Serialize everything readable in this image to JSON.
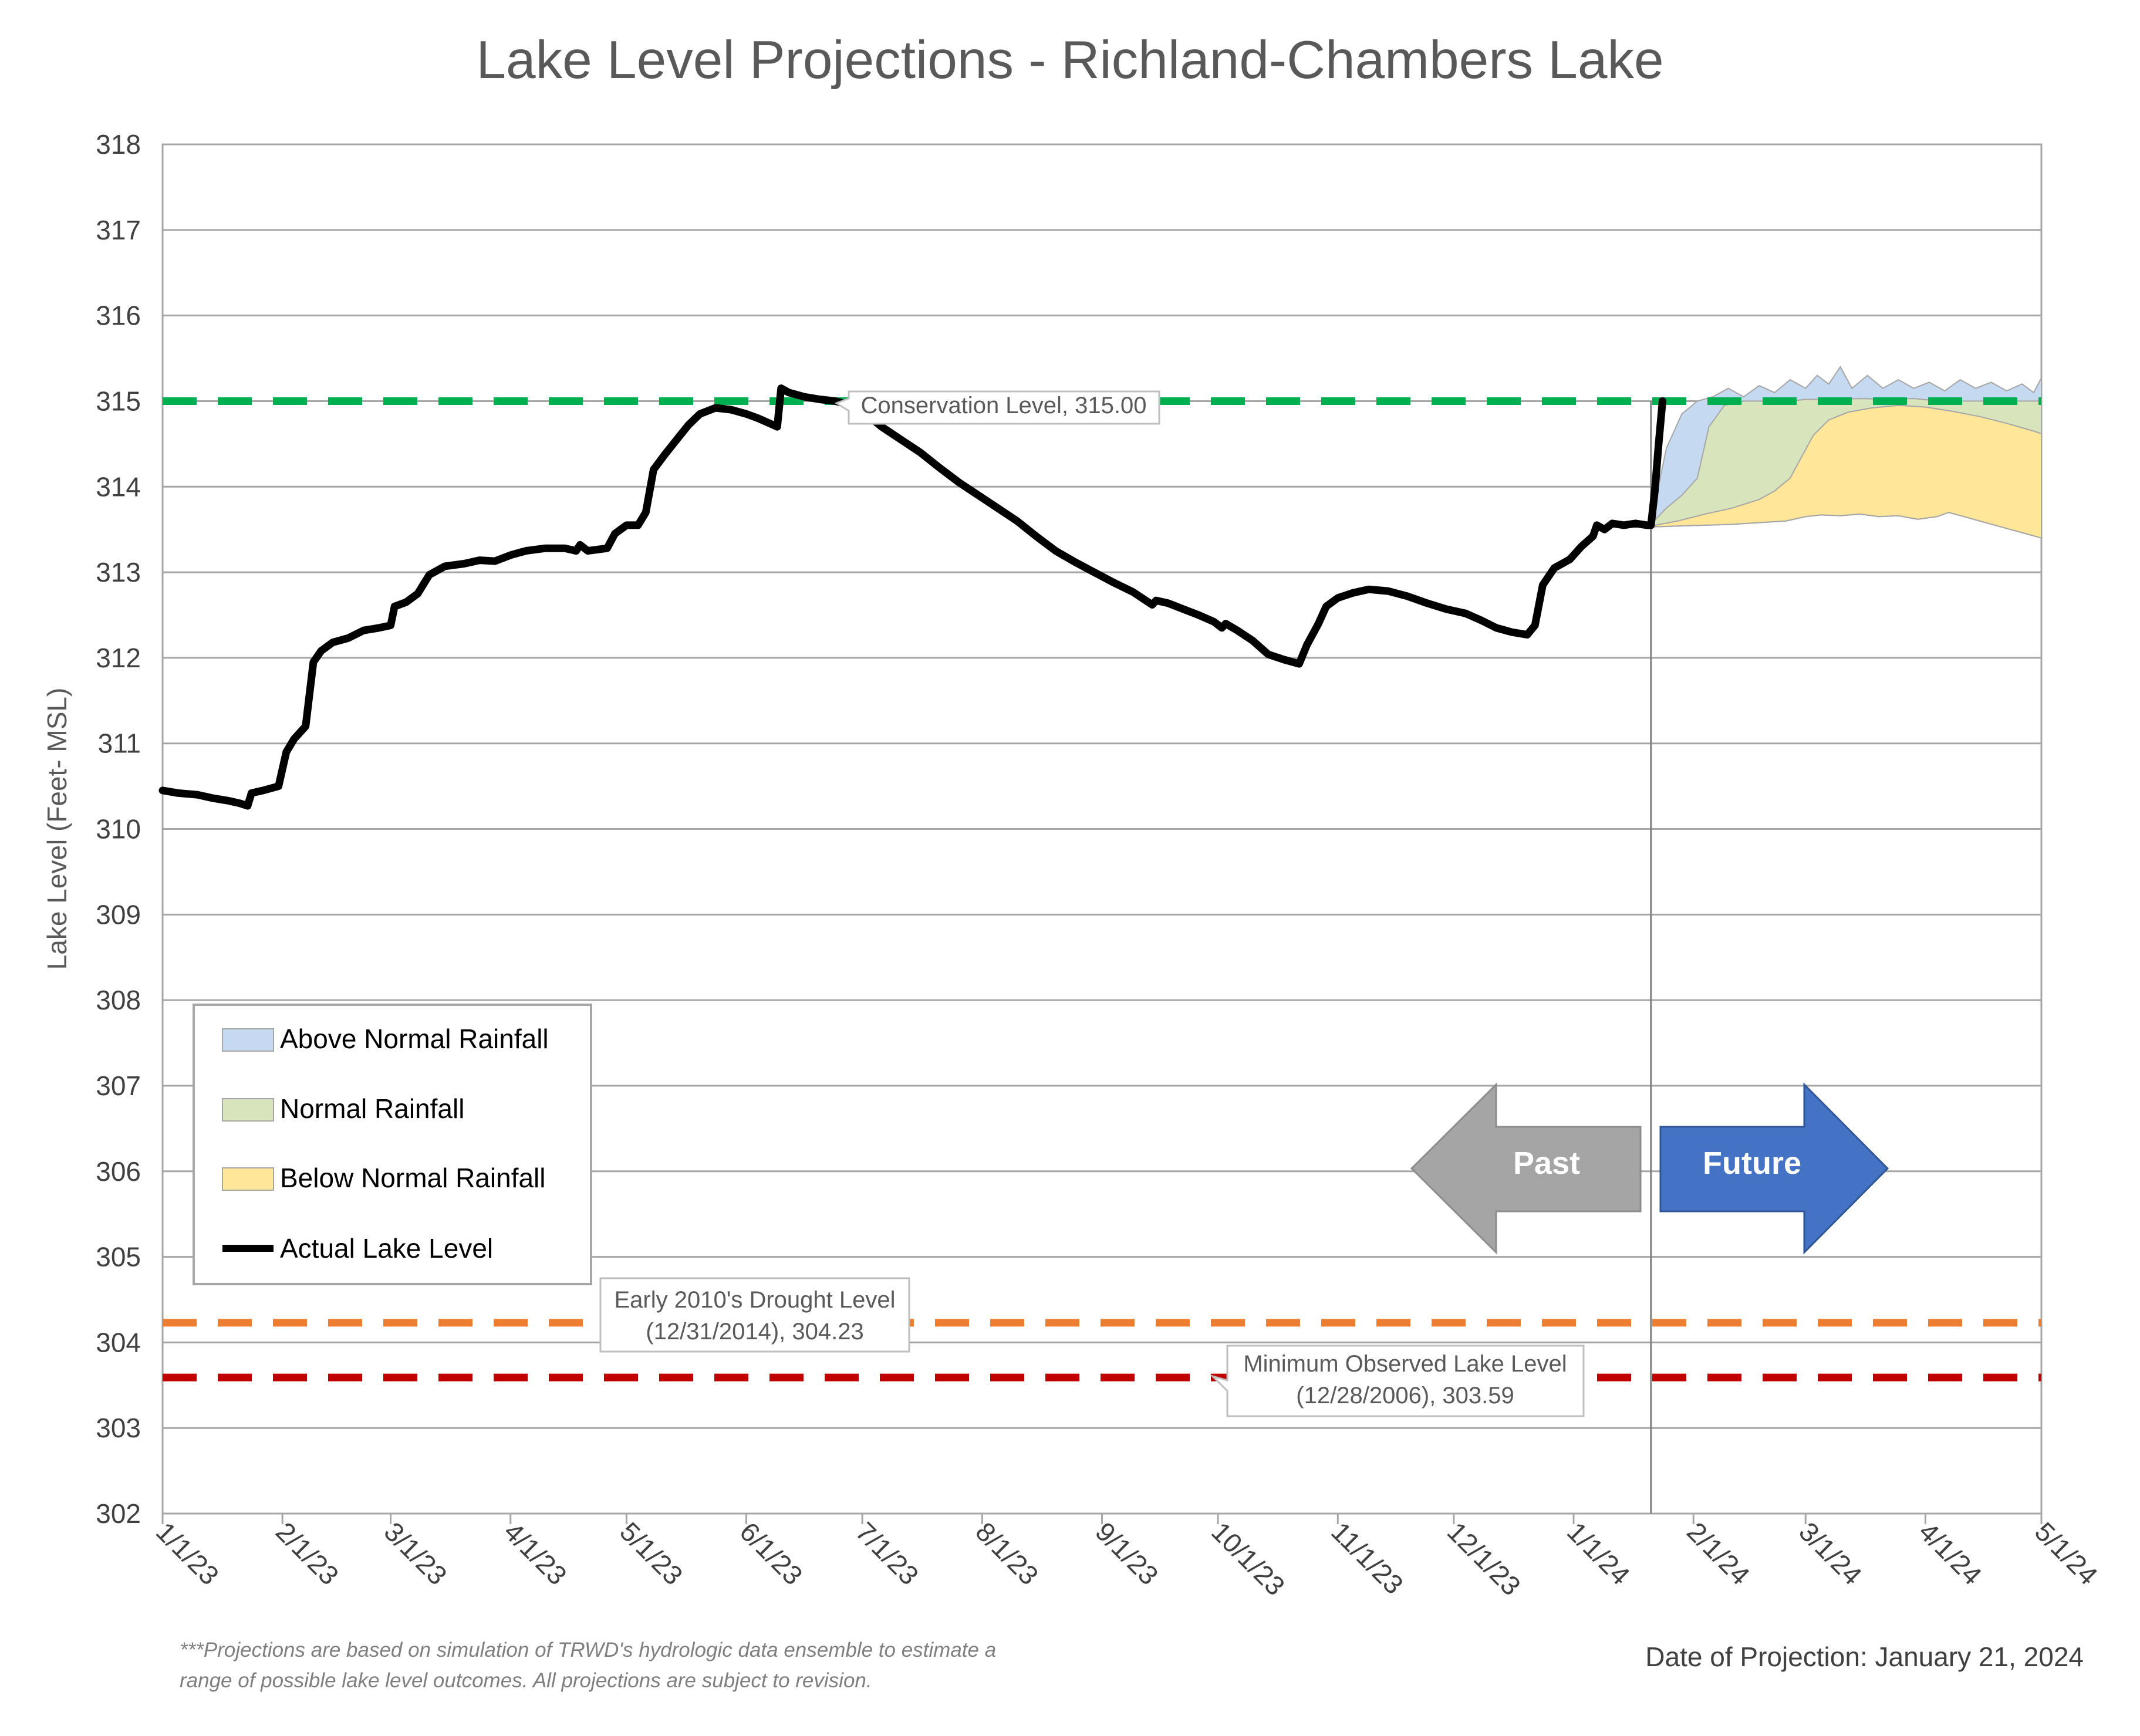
{
  "chart_data": {
    "type": "area",
    "title": "Lake Level Projections - Richland-Chambers Lake",
    "ylabel": "Lake Level (Feet- MSL)",
    "ylim": [
      302,
      318
    ],
    "yticks": [
      "302",
      "303",
      "304",
      "305",
      "306",
      "307",
      "308",
      "309",
      "310",
      "311",
      "312",
      "313",
      "314",
      "315",
      "316",
      "317",
      "318"
    ],
    "xlim": [
      "2023-01-01",
      "2024-05-01"
    ],
    "xticks": [
      {
        "date": "2023-01-01",
        "label": "1/1/23"
      },
      {
        "date": "2023-02-01",
        "label": "2/1/23"
      },
      {
        "date": "2023-03-01",
        "label": "3/1/23"
      },
      {
        "date": "2023-04-01",
        "label": "4/1/23"
      },
      {
        "date": "2023-05-01",
        "label": "5/1/23"
      },
      {
        "date": "2023-06-01",
        "label": "6/1/23"
      },
      {
        "date": "2023-07-01",
        "label": "7/1/23"
      },
      {
        "date": "2023-08-01",
        "label": "8/1/23"
      },
      {
        "date": "2023-09-01",
        "label": "9/1/23"
      },
      {
        "date": "2023-10-01",
        "label": "10/1/23"
      },
      {
        "date": "2023-11-01",
        "label": "11/1/23"
      },
      {
        "date": "2023-12-01",
        "label": "12/1/23"
      },
      {
        "date": "2024-01-01",
        "label": "1/1/24"
      },
      {
        "date": "2024-02-01",
        "label": "2/1/24"
      },
      {
        "date": "2024-03-01",
        "label": "3/1/24"
      },
      {
        "date": "2024-04-01",
        "label": "4/1/24"
      },
      {
        "date": "2024-05-01",
        "label": "5/1/24"
      }
    ],
    "grid": true,
    "legend_position": "lower-left",
    "projection_date": "2024-01-21",
    "reference_lines": [
      {
        "name": "Conservation Level",
        "value": 315.0,
        "color": "#00b050",
        "label": "Conservation Level, 315.00"
      },
      {
        "name": "Early 2010's Drought Level",
        "value": 304.23,
        "color": "#ed7d31",
        "label_line1": "Early 2010's Drought Level",
        "label_line2": "(12/31/2014), 304.23"
      },
      {
        "name": "Minimum Observed Lake Level",
        "value": 303.59,
        "color": "#c00000",
        "label_line1": "Minimum Observed Lake Level",
        "label_line2": "(12/28/2006), 303.59"
      }
    ],
    "series": [
      {
        "name": "Actual Lake Level",
        "color": "#000000",
        "points": [
          [
            "2023-01-01",
            310.45
          ],
          [
            "2023-01-05",
            310.42
          ],
          [
            "2023-01-10",
            310.4
          ],
          [
            "2023-01-14",
            310.36
          ],
          [
            "2023-01-18",
            310.33
          ],
          [
            "2023-01-21",
            310.3
          ],
          [
            "2023-01-23",
            310.27
          ],
          [
            "2023-01-24",
            310.42
          ],
          [
            "2023-01-27",
            310.45
          ],
          [
            "2023-01-31",
            310.5
          ],
          [
            "2023-02-02",
            310.9
          ],
          [
            "2023-02-04",
            311.05
          ],
          [
            "2023-02-07",
            311.2
          ],
          [
            "2023-02-09",
            311.95
          ],
          [
            "2023-02-11",
            312.08
          ],
          [
            "2023-02-14",
            312.18
          ],
          [
            "2023-02-18",
            312.23
          ],
          [
            "2023-02-22",
            312.32
          ],
          [
            "2023-02-26",
            312.35
          ],
          [
            "2023-03-01",
            312.38
          ],
          [
            "2023-03-02",
            312.6
          ],
          [
            "2023-03-05",
            312.65
          ],
          [
            "2023-03-08",
            312.75
          ],
          [
            "2023-03-11",
            312.97
          ],
          [
            "2023-03-15",
            313.07
          ],
          [
            "2023-03-20",
            313.1
          ],
          [
            "2023-03-24",
            313.14
          ],
          [
            "2023-03-28",
            313.13
          ],
          [
            "2023-04-01",
            313.2
          ],
          [
            "2023-04-05",
            313.25
          ],
          [
            "2023-04-10",
            313.28
          ],
          [
            "2023-04-15",
            313.28
          ],
          [
            "2023-04-18",
            313.25
          ],
          [
            "2023-04-19",
            313.32
          ],
          [
            "2023-04-21",
            313.25
          ],
          [
            "2023-04-26",
            313.28
          ],
          [
            "2023-04-28",
            313.45
          ],
          [
            "2023-05-01",
            313.55
          ],
          [
            "2023-05-04",
            313.55
          ],
          [
            "2023-05-06",
            313.7
          ],
          [
            "2023-05-08",
            314.2
          ],
          [
            "2023-05-11",
            314.38
          ],
          [
            "2023-05-14",
            314.55
          ],
          [
            "2023-05-17",
            314.72
          ],
          [
            "2023-05-20",
            314.85
          ],
          [
            "2023-05-24",
            314.92
          ],
          [
            "2023-05-28",
            314.9
          ],
          [
            "2023-06-01",
            314.85
          ],
          [
            "2023-06-04",
            314.8
          ],
          [
            "2023-06-07",
            314.74
          ],
          [
            "2023-06-09",
            314.7
          ],
          [
            "2023-06-10",
            315.15
          ],
          [
            "2023-06-12",
            315.1
          ],
          [
            "2023-06-16",
            315.05
          ],
          [
            "2023-06-20",
            315.02
          ],
          [
            "2023-06-24",
            315.0
          ],
          [
            "2023-06-28",
            314.95
          ],
          [
            "2023-07-02",
            314.85
          ],
          [
            "2023-07-06",
            314.7
          ],
          [
            "2023-07-11",
            314.55
          ],
          [
            "2023-07-16",
            314.4
          ],
          [
            "2023-07-21",
            314.22
          ],
          [
            "2023-07-26",
            314.05
          ],
          [
            "2023-07-31",
            313.9
          ],
          [
            "2023-08-05",
            313.75
          ],
          [
            "2023-08-10",
            313.6
          ],
          [
            "2023-08-15",
            313.42
          ],
          [
            "2023-08-20",
            313.25
          ],
          [
            "2023-08-25",
            313.12
          ],
          [
            "2023-08-30",
            313.0
          ],
          [
            "2023-09-04",
            312.88
          ],
          [
            "2023-09-09",
            312.77
          ],
          [
            "2023-09-14",
            312.62
          ],
          [
            "2023-09-15",
            312.67
          ],
          [
            "2023-09-18",
            312.64
          ],
          [
            "2023-09-22",
            312.57
          ],
          [
            "2023-09-26",
            312.5
          ],
          [
            "2023-09-30",
            312.42
          ],
          [
            "2023-10-02",
            312.35
          ],
          [
            "2023-10-03",
            312.4
          ],
          [
            "2023-10-06",
            312.32
          ],
          [
            "2023-10-10",
            312.2
          ],
          [
            "2023-10-14",
            312.04
          ],
          [
            "2023-10-18",
            311.98
          ],
          [
            "2023-10-22",
            311.93
          ],
          [
            "2023-10-24",
            312.15
          ],
          [
            "2023-10-27",
            312.4
          ],
          [
            "2023-10-29",
            312.6
          ],
          [
            "2023-11-01",
            312.7
          ],
          [
            "2023-11-05",
            312.76
          ],
          [
            "2023-11-09",
            312.8
          ],
          [
            "2023-11-14",
            312.78
          ],
          [
            "2023-11-19",
            312.72
          ],
          [
            "2023-11-24",
            312.64
          ],
          [
            "2023-11-29",
            312.57
          ],
          [
            "2023-12-04",
            312.52
          ],
          [
            "2023-12-08",
            312.44
          ],
          [
            "2023-12-12",
            312.35
          ],
          [
            "2023-12-16",
            312.3
          ],
          [
            "2023-12-20",
            312.27
          ],
          [
            "2023-12-22",
            312.38
          ],
          [
            "2023-12-24",
            312.85
          ],
          [
            "2023-12-27",
            313.05
          ],
          [
            "2023-12-31",
            313.15
          ],
          [
            "2024-01-03",
            313.3
          ],
          [
            "2024-01-06",
            313.42
          ],
          [
            "2024-01-07",
            313.55
          ],
          [
            "2024-01-09",
            313.5
          ],
          [
            "2024-01-11",
            313.57
          ],
          [
            "2024-01-14",
            313.55
          ],
          [
            "2024-01-17",
            313.57
          ],
          [
            "2024-01-20",
            313.55
          ],
          [
            "2024-01-21",
            313.55
          ],
          [
            "2024-01-22",
            313.95
          ],
          [
            "2024-01-23",
            314.5
          ],
          [
            "2024-01-24",
            315.0
          ]
        ]
      },
      {
        "name": "Above Normal Rainfall",
        "color": "#c5d9f1",
        "edge_color": "#a6a6a6",
        "upper": [
          [
            "2024-01-21",
            313.58
          ],
          [
            "2024-01-25",
            314.45
          ],
          [
            "2024-01-29",
            314.85
          ],
          [
            "2024-02-02",
            315.0
          ],
          [
            "2024-02-06",
            315.05
          ],
          [
            "2024-02-10",
            315.15
          ],
          [
            "2024-02-14",
            315.05
          ],
          [
            "2024-02-18",
            315.18
          ],
          [
            "2024-02-22",
            315.1
          ],
          [
            "2024-02-26",
            315.25
          ],
          [
            "2024-03-01",
            315.15
          ],
          [
            "2024-03-04",
            315.3
          ],
          [
            "2024-03-07",
            315.2
          ],
          [
            "2024-03-10",
            315.4
          ],
          [
            "2024-03-13",
            315.15
          ],
          [
            "2024-03-17",
            315.3
          ],
          [
            "2024-03-21",
            315.15
          ],
          [
            "2024-03-25",
            315.25
          ],
          [
            "2024-03-29",
            315.15
          ],
          [
            "2024-04-02",
            315.22
          ],
          [
            "2024-04-06",
            315.12
          ],
          [
            "2024-04-10",
            315.25
          ],
          [
            "2024-04-14",
            315.15
          ],
          [
            "2024-04-18",
            315.22
          ],
          [
            "2024-04-22",
            315.12
          ],
          [
            "2024-04-26",
            315.2
          ],
          [
            "2024-04-29",
            315.1
          ],
          [
            "2024-05-01",
            315.27
          ]
        ]
      },
      {
        "name": "Normal Rainfall",
        "color": "#d8e4bc",
        "edge_color": "#a6a6a6",
        "upper": [
          [
            "2024-01-21",
            313.56
          ],
          [
            "2024-01-25",
            313.75
          ],
          [
            "2024-01-29",
            313.9
          ],
          [
            "2024-02-02",
            314.1
          ],
          [
            "2024-02-05",
            314.7
          ],
          [
            "2024-02-09",
            314.95
          ],
          [
            "2024-02-14",
            315.0
          ],
          [
            "2024-02-20",
            315.0
          ],
          [
            "2024-02-26",
            315.0
          ],
          [
            "2024-03-01",
            315.02
          ],
          [
            "2024-03-08",
            315.02
          ],
          [
            "2024-03-15",
            315.03
          ],
          [
            "2024-03-22",
            315.02
          ],
          [
            "2024-03-29",
            315.03
          ],
          [
            "2024-04-05",
            315.0
          ],
          [
            "2024-04-12",
            315.0
          ],
          [
            "2024-04-19",
            315.0
          ],
          [
            "2024-04-26",
            315.0
          ],
          [
            "2024-05-01",
            315.0
          ]
        ]
      },
      {
        "name": "Below Normal Rainfall",
        "color": "#ffe699",
        "edge_color": "#a6a6a6",
        "upper": [
          [
            "2024-01-21",
            313.54
          ],
          [
            "2024-01-28",
            313.6
          ],
          [
            "2024-02-04",
            313.68
          ],
          [
            "2024-02-11",
            313.75
          ],
          [
            "2024-02-18",
            313.85
          ],
          [
            "2024-02-22",
            313.95
          ],
          [
            "2024-02-26",
            314.1
          ],
          [
            "2024-02-29",
            314.35
          ],
          [
            "2024-03-03",
            314.6
          ],
          [
            "2024-03-07",
            314.78
          ],
          [
            "2024-03-12",
            314.87
          ],
          [
            "2024-03-18",
            314.92
          ],
          [
            "2024-03-25",
            314.95
          ],
          [
            "2024-04-01",
            314.93
          ],
          [
            "2024-04-08",
            314.88
          ],
          [
            "2024-04-15",
            314.82
          ],
          [
            "2024-04-22",
            314.74
          ],
          [
            "2024-04-29",
            314.65
          ],
          [
            "2024-05-01",
            314.62
          ]
        ],
        "lower": [
          [
            "2024-01-21",
            313.53
          ],
          [
            "2024-01-28",
            313.54
          ],
          [
            "2024-02-04",
            313.55
          ],
          [
            "2024-02-11",
            313.56
          ],
          [
            "2024-02-18",
            313.58
          ],
          [
            "2024-02-25",
            313.6
          ],
          [
            "2024-03-01",
            313.65
          ],
          [
            "2024-03-05",
            313.67
          ],
          [
            "2024-03-10",
            313.66
          ],
          [
            "2024-03-15",
            313.68
          ],
          [
            "2024-03-20",
            313.65
          ],
          [
            "2024-03-25",
            313.66
          ],
          [
            "2024-03-30",
            313.62
          ],
          [
            "2024-04-04",
            313.65
          ],
          [
            "2024-04-07",
            313.7
          ],
          [
            "2024-04-11",
            313.65
          ],
          [
            "2024-04-15",
            313.6
          ],
          [
            "2024-04-19",
            313.55
          ],
          [
            "2024-04-23",
            313.5
          ],
          [
            "2024-04-27",
            313.45
          ],
          [
            "2024-05-01",
            313.4
          ]
        ]
      }
    ],
    "legend_items": [
      "Above Normal Rainfall",
      "Normal Rainfall",
      "Below Normal Rainfall",
      "Actual Lake Level"
    ],
    "arrows": {
      "past": "Past",
      "future": "Future",
      "past_color": "#a5a5a5",
      "future_color": "#4472c4"
    },
    "footnote_line1": "***Projections are based on simulation of TRWD's hydrologic data ensemble to estimate a",
    "footnote_line2": "range of possible lake level outcomes.  All projections are subject to revision.",
    "date_of_projection": "Date of Projection: January 21, 2024"
  }
}
